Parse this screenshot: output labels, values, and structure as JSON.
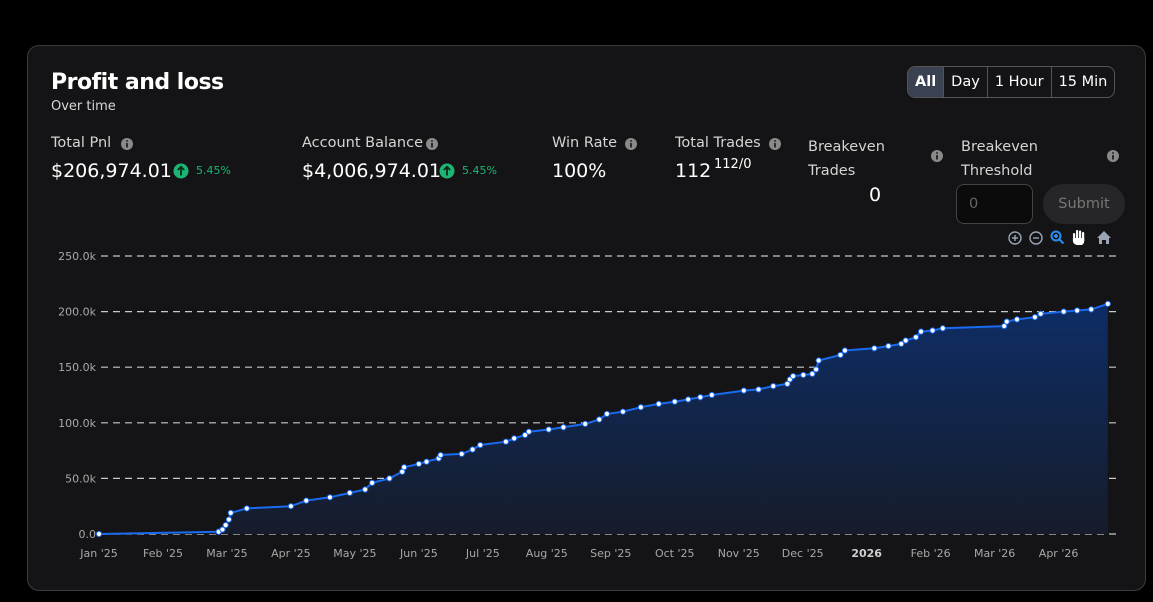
{
  "header": {
    "title": "Profit and loss",
    "subtitle": "Over time"
  },
  "range_buttons": [
    "All",
    "Day",
    "1 Hour",
    "15 Min"
  ],
  "selected_range": 0,
  "stats": {
    "total_pnl": {
      "label": "Total Pnl",
      "value": "$206,974.01",
      "change": "5.45%"
    },
    "account_balance": {
      "label": "Account Balance",
      "value": "$4,006,974.01",
      "change": "5.45%"
    },
    "win_rate": {
      "label": "Win Rate",
      "value": "100%"
    },
    "total_trades": {
      "label": "Total Trades",
      "value": "112",
      "detail": "112/0"
    },
    "breakeven_trades": {
      "label": "Breakeven Trades",
      "value": "0"
    },
    "breakeven_threshold": {
      "label": "Breakeven Threshold",
      "placeholder": "0",
      "button": "Submit"
    }
  },
  "chart_data": {
    "type": "area",
    "color": "#1a6bf0",
    "grid": true,
    "x": [
      0,
      1.87,
      1.93,
      1.98,
      2.03,
      2.06,
      2.31,
      3.0,
      3.24,
      3.61,
      3.92,
      4.16,
      4.27,
      4.54,
      4.74,
      4.77,
      5.0,
      5.12,
      5.31,
      5.34,
      5.67,
      5.84,
      5.96,
      6.36,
      6.49,
      6.66,
      6.72,
      7.03,
      7.26,
      7.6,
      7.82,
      7.94,
      8.19,
      8.47,
      8.75,
      9.0,
      9.21,
      9.4,
      9.58,
      10.08,
      10.31,
      10.54,
      10.76,
      10.8,
      10.85,
      11.01,
      11.15,
      11.21,
      11.25,
      11.59,
      11.66,
      12.12,
      12.34,
      12.54,
      12.61,
      12.77,
      12.85,
      13.03,
      13.19,
      14.15,
      14.19,
      14.35,
      14.63,
      14.72,
      15.08,
      15.29,
      15.51,
      15.77
    ],
    "values": [
      0,
      2000,
      4000,
      8000,
      13000,
      19000,
      23000,
      25000,
      30000,
      33000,
      37000,
      40000,
      46000,
      50000,
      56000,
      60000,
      63000,
      65000,
      68000,
      71000,
      72000,
      76000,
      80000,
      83000,
      86000,
      89000,
      92000,
      94000,
      96000,
      99000,
      103000,
      108000,
      110000,
      114000,
      117000,
      119000,
      121000,
      123000,
      125000,
      129000,
      130000,
      133000,
      135000,
      139000,
      142000,
      143000,
      144000,
      148000,
      156000,
      161000,
      165000,
      167000,
      169000,
      171000,
      174000,
      177000,
      182000,
      183000,
      185000,
      187000,
      191000,
      193000,
      195000,
      198000,
      200000,
      201000,
      202000,
      206974.01
    ],
    "xlim": [
      0,
      15.96
    ],
    "ylim": [
      0,
      250000
    ],
    "yticks": [
      {
        "value": 0,
        "label": "0.0"
      },
      {
        "value": 50000,
        "label": "50.0k"
      },
      {
        "value": 100000,
        "label": "100.0k"
      },
      {
        "value": 150000,
        "label": "150.0k"
      },
      {
        "value": 200000,
        "label": "200.0k"
      },
      {
        "value": 250000,
        "label": "250.0k"
      }
    ],
    "xticks": [
      {
        "value": 0,
        "label": "Jan '25"
      },
      {
        "value": 1,
        "label": "Feb '25"
      },
      {
        "value": 2,
        "label": "Mar '25"
      },
      {
        "value": 3,
        "label": "Apr '25"
      },
      {
        "value": 4,
        "label": "May '25"
      },
      {
        "value": 5,
        "label": "Jun '25"
      },
      {
        "value": 6,
        "label": "Jul '25"
      },
      {
        "value": 7,
        "label": "Aug '25"
      },
      {
        "value": 8,
        "label": "Sep '25"
      },
      {
        "value": 9,
        "label": "Oct '25"
      },
      {
        "value": 10,
        "label": "Nov '25"
      },
      {
        "value": 11,
        "label": "Dec '25"
      },
      {
        "value": 12,
        "label": "2026",
        "bold": true
      },
      {
        "value": 13,
        "label": "Feb '26"
      },
      {
        "value": 14,
        "label": "Mar '26"
      },
      {
        "value": 15,
        "label": "Apr '26"
      }
    ]
  }
}
